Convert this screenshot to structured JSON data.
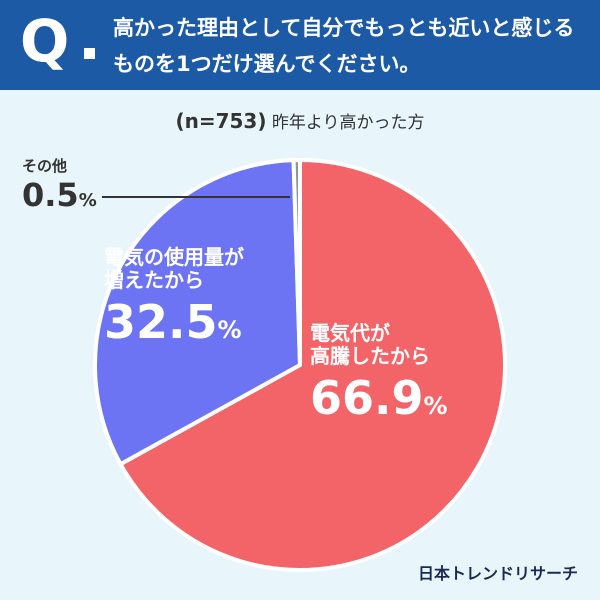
{
  "header": {
    "q_mark": "Q",
    "question": "高かった理由として自分でもっとも近いと感じるものを1つだけ選んでください。"
  },
  "subtitle": {
    "n": "(n=753)",
    "text": "昨年より高かった方"
  },
  "colors": {
    "header_bg": "#1c5aa6",
    "background": "#e8f6fb",
    "red": "#f36468",
    "blue": "#6c74f3",
    "gray": "#949494"
  },
  "chart_data": {
    "type": "pie",
    "categories": [
      "電気代が高騰したから",
      "電気の使用量が増えたから",
      "その他"
    ],
    "values": [
      66.9,
      32.5,
      0.5
    ],
    "unit": "%",
    "labels": [
      {
        "line1": "電気代が",
        "line2": "高騰したから",
        "value": "66.9",
        "pct": "%"
      },
      {
        "line1": "電気の使用量が",
        "line2": "増えたから",
        "value": "32.5",
        "pct": "%"
      },
      {
        "line1": "その他",
        "line2": "",
        "value": "0.5",
        "pct": "%"
      }
    ]
  },
  "source": "日本トレンドリサーチ"
}
